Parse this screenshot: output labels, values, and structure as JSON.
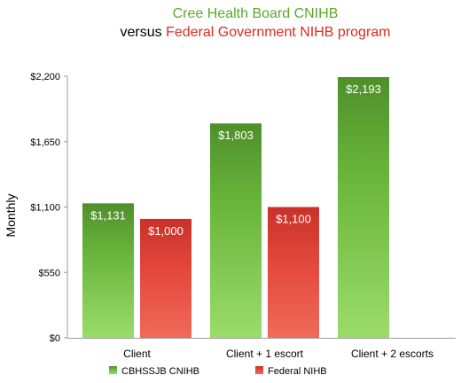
{
  "chart_data": {
    "type": "bar",
    "title_parts": {
      "line1": "Cree Health Board CNIHB",
      "line2_prefix": "versus ",
      "line2_suffix": "Federal Government NIHB program"
    },
    "ylabel": "Monthly",
    "xlabel": "",
    "categories": [
      "Client",
      "Client + 1 escort",
      "Client + 2 escorts"
    ],
    "ylim": [
      0,
      2200
    ],
    "yticks": [
      0,
      550,
      1100,
      1650,
      2200
    ],
    "ytick_labels": [
      "$0",
      "$550",
      "$1,100",
      "$1,650",
      "$2,200"
    ],
    "grid": false,
    "legend_position": "bottom",
    "series": [
      {
        "name": "CBHSSJB CNIHB",
        "color": "#5ea83a",
        "values": [
          1131,
          1803,
          2193
        ],
        "labels": [
          "$1,131",
          "$1,803",
          "$2,193"
        ]
      },
      {
        "name": "Federal NIHB",
        "color": "#e23b2e",
        "values": [
          1000,
          1100,
          null
        ],
        "labels": [
          "$1,000",
          "$1,100",
          ""
        ]
      }
    ],
    "colors": {
      "title_green": "#5aa82c",
      "title_red": "#e02a1f",
      "axis": "#999999",
      "text": "#000000",
      "data_label": "#ffffff"
    }
  }
}
